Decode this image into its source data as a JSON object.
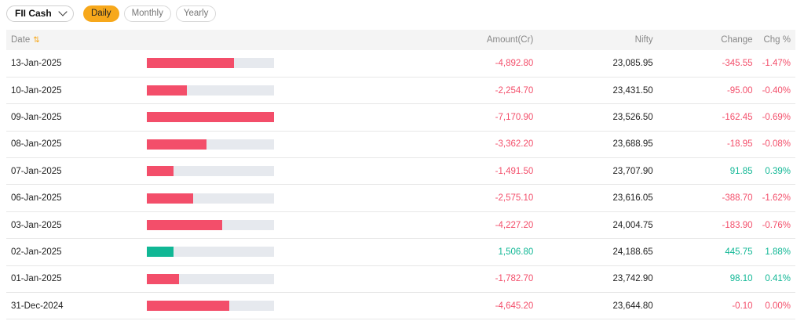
{
  "colors": {
    "negative": "#f34e6a",
    "positive": "#10b795",
    "accent": "#f7a81b"
  },
  "toolbar": {
    "dropdown_value": "FII Cash",
    "tabs": [
      "Daily",
      "Monthly",
      "Yearly"
    ],
    "active_tab": "Daily"
  },
  "table": {
    "headers": {
      "date": "Date",
      "amount": "Amount(Cr)",
      "nifty": "Nifty",
      "change": "Change",
      "chg_pct": "Chg %"
    },
    "max_abs_amount": 7170.9,
    "rows": [
      {
        "date": "13-Jan-2025",
        "amount": "-4,892.80",
        "amount_value": -4892.8,
        "nifty": "23,085.95",
        "change": "-345.55",
        "chg_pct": "-1.47%",
        "change_dir": "neg"
      },
      {
        "date": "10-Jan-2025",
        "amount": "-2,254.70",
        "amount_value": -2254.7,
        "nifty": "23,431.50",
        "change": "-95.00",
        "chg_pct": "-0.40%",
        "change_dir": "neg"
      },
      {
        "date": "09-Jan-2025",
        "amount": "-7,170.90",
        "amount_value": -7170.9,
        "nifty": "23,526.50",
        "change": "-162.45",
        "chg_pct": "-0.69%",
        "change_dir": "neg"
      },
      {
        "date": "08-Jan-2025",
        "amount": "-3,362.20",
        "amount_value": -3362.2,
        "nifty": "23,688.95",
        "change": "-18.95",
        "chg_pct": "-0.08%",
        "change_dir": "neg"
      },
      {
        "date": "07-Jan-2025",
        "amount": "-1,491.50",
        "amount_value": -1491.5,
        "nifty": "23,707.90",
        "change": "91.85",
        "chg_pct": "0.39%",
        "change_dir": "pos"
      },
      {
        "date": "06-Jan-2025",
        "amount": "-2,575.10",
        "amount_value": -2575.1,
        "nifty": "23,616.05",
        "change": "-388.70",
        "chg_pct": "-1.62%",
        "change_dir": "neg"
      },
      {
        "date": "03-Jan-2025",
        "amount": "-4,227.20",
        "amount_value": -4227.2,
        "nifty": "24,004.75",
        "change": "-183.90",
        "chg_pct": "-0.76%",
        "change_dir": "neg"
      },
      {
        "date": "02-Jan-2025",
        "amount": "1,506.80",
        "amount_value": 1506.8,
        "nifty": "24,188.65",
        "change": "445.75",
        "chg_pct": "1.88%",
        "change_dir": "pos"
      },
      {
        "date": "01-Jan-2025",
        "amount": "-1,782.70",
        "amount_value": -1782.7,
        "nifty": "23,742.90",
        "change": "98.10",
        "chg_pct": "0.41%",
        "change_dir": "pos"
      },
      {
        "date": "31-Dec-2024",
        "amount": "-4,645.20",
        "amount_value": -4645.2,
        "nifty": "23,644.80",
        "change": "-0.10",
        "chg_pct": "0.00%",
        "change_dir": "neg"
      }
    ]
  }
}
